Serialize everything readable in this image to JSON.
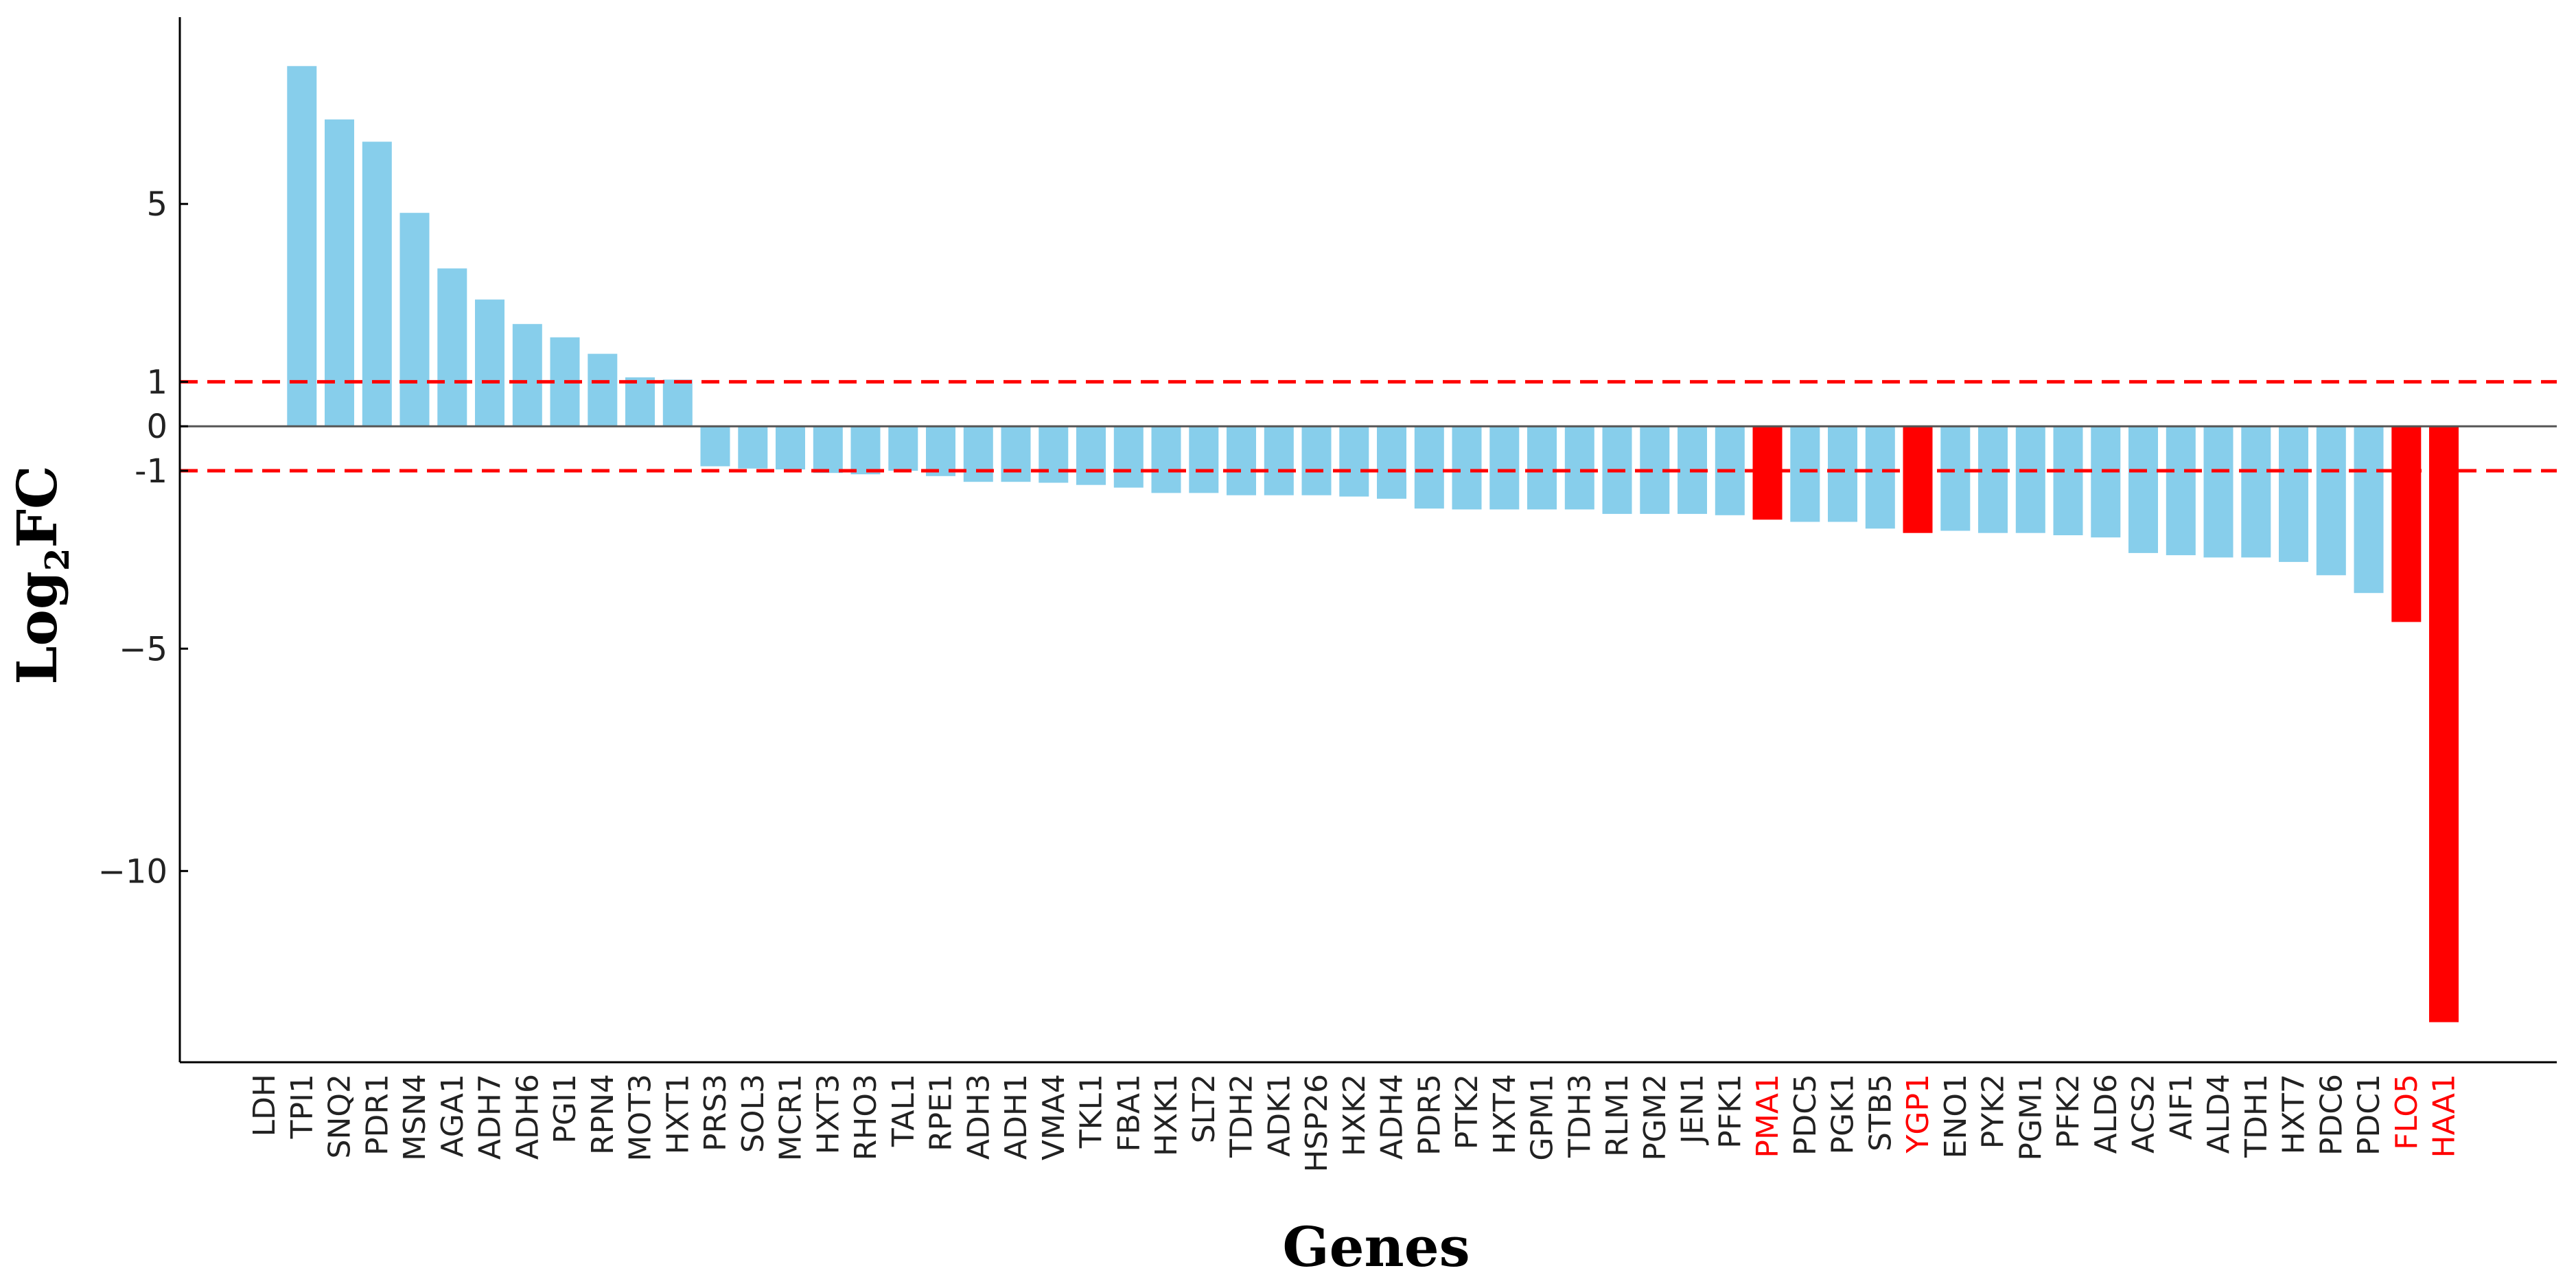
{
  "chart_data": {
    "type": "bar",
    "title": "",
    "xlabel": "Genes",
    "ylabel_main": "Log",
    "ylabel_sub": "2",
    "ylabel_tail": "FC",
    "ylim": [
      -14.3,
      9.2
    ],
    "yticks": [
      {
        "value": 5,
        "label": "5",
        "color": "#222222"
      },
      {
        "value": 1,
        "label": "1",
        "color": "#ff0000"
      },
      {
        "value": 0,
        "label": "0",
        "color": "#222222"
      },
      {
        "value": -1,
        "label": "-1",
        "color": "#ff0000"
      },
      {
        "value": -5,
        "label": "−5",
        "color": "#222222"
      },
      {
        "value": -10,
        "label": "−10",
        "color": "#222222"
      }
    ],
    "threshold_lines": [
      1,
      -1
    ],
    "colors": {
      "bar": "#87ceeb",
      "highlight": "#ff0000",
      "threshold": "#ff0000",
      "zero_line": "#555555",
      "axis": "#000000",
      "label": "#222222"
    },
    "categories": [
      "LDH",
      "TPI1",
      "SNQ2",
      "PDR1",
      "MSN4",
      "AGA1",
      "ADH7",
      "ADH6",
      "PGI1",
      "RPN4",
      "MOT3",
      "HXT1",
      "PRS3",
      "SOL3",
      "MCR1",
      "HXT3",
      "RHO3",
      "TAL1",
      "RPE1",
      "ADH3",
      "ADH1",
      "VMA4",
      "TKL1",
      "FBA1",
      "HXK1",
      "SLT2",
      "TDH2",
      "ADK1",
      "HSP26",
      "HXK2",
      "ADH4",
      "PDR5",
      "PTK2",
      "HXT4",
      "GPM1",
      "TDH3",
      "RLM1",
      "PGM2",
      "JEN1",
      "PFK1",
      "PMA1",
      "PDC5",
      "PGK1",
      "STB5",
      "YGP1",
      "ENO1",
      "PYK2",
      "PGM1",
      "PFK2",
      "ALD6",
      "ACS2",
      "AIF1",
      "ALD4",
      "TDH1",
      "HXT7",
      "PDC6",
      "PDC1",
      "FLO5",
      "HAA1"
    ],
    "values": [
      0,
      8.1,
      6.9,
      6.4,
      4.8,
      3.55,
      2.85,
      2.3,
      2.0,
      1.63,
      1.1,
      1.05,
      -0.9,
      -0.95,
      -0.97,
      -1.05,
      -1.08,
      -1.0,
      -1.12,
      -1.25,
      -1.25,
      -1.27,
      -1.32,
      -1.38,
      -1.5,
      -1.5,
      -1.55,
      -1.55,
      -1.55,
      -1.58,
      -1.63,
      -1.85,
      -1.87,
      -1.87,
      -1.87,
      -1.87,
      -1.97,
      -1.97,
      -1.97,
      -2.0,
      -2.1,
      -2.15,
      -2.15,
      -2.3,
      -2.4,
      -2.35,
      -2.4,
      -2.4,
      -2.45,
      -2.5,
      -2.85,
      -2.9,
      -2.95,
      -2.95,
      -3.05,
      -3.35,
      -3.75,
      -4.4,
      -13.4
    ],
    "highlighted": [
      "PMA1",
      "YGP1",
      "FLO5",
      "HAA1"
    ]
  }
}
